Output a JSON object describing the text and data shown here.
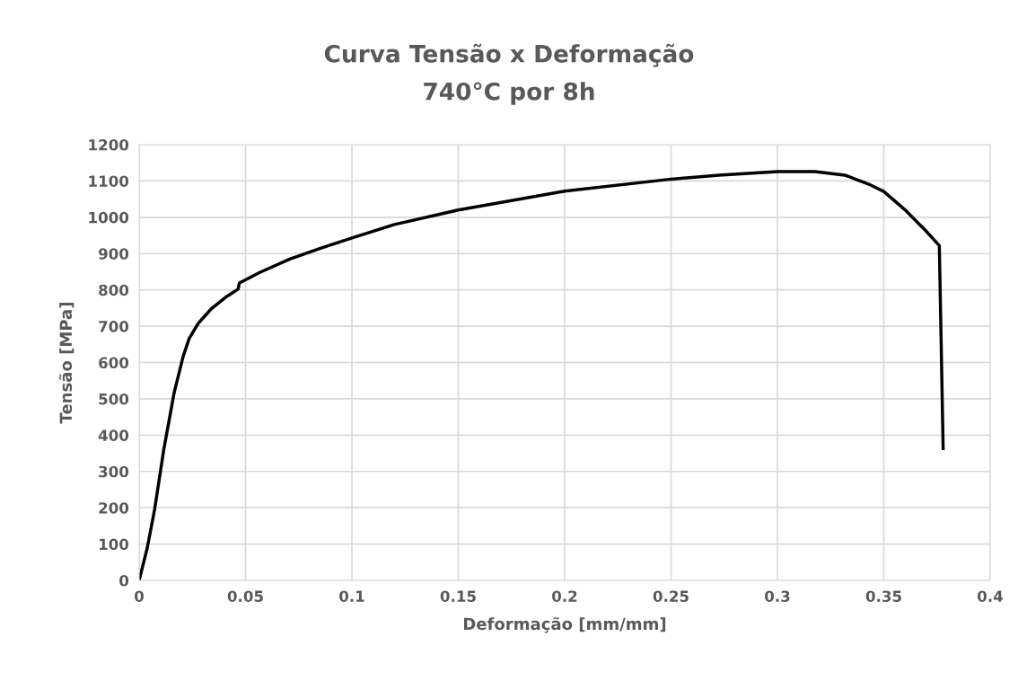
{
  "chart_data": {
    "type": "line",
    "title": "Curva Tensão x Deformação",
    "subtitle": "740°C por 8h",
    "xlabel": "Deformação [mm/mm]",
    "ylabel": "Tensão [MPa]",
    "series": [
      {
        "color": "#000000",
        "x": [
          0,
          0.0038,
          0.0073,
          0.0116,
          0.0165,
          0.0207,
          0.0235,
          0.0278,
          0.0341,
          0.0412,
          0.0465,
          0.0471,
          0.0567,
          0.0708,
          0.0849,
          0.1,
          0.12,
          0.15,
          0.2,
          0.25,
          0.2725,
          0.3,
          0.3176,
          0.3317,
          0.343,
          0.35,
          0.3599,
          0.3697,
          0.3761,
          0.3779
        ],
        "values": [
          0,
          89,
          196,
          361,
          518,
          617,
          666,
          708,
          749,
          782,
          802,
          819,
          848,
          885,
          914,
          943,
          980,
          1020,
          1072,
          1105,
          1116,
          1126,
          1126,
          1116,
          1091,
          1071,
          1021,
          963,
          922,
          363
        ]
      }
    ],
    "xlim": [
      0,
      0.4
    ],
    "xticks": [
      0,
      0.05,
      0.1,
      0.15,
      0.2,
      0.25,
      0.3,
      0.35,
      0.4
    ],
    "ylim": [
      0,
      1200
    ],
    "yticks": [
      0,
      100,
      200,
      300,
      400,
      500,
      600,
      700,
      800,
      900,
      1000,
      1100,
      1200
    ],
    "grid": true,
    "marker": "none",
    "line_style": "solid"
  }
}
